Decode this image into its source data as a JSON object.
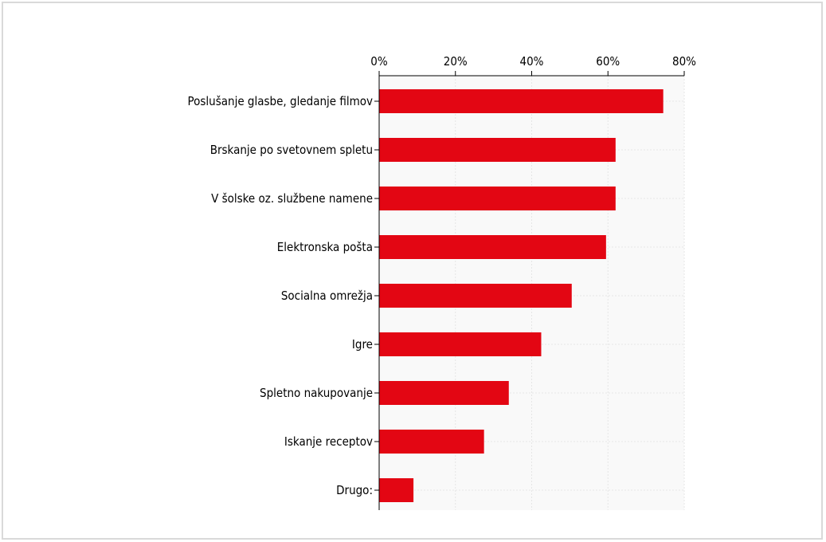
{
  "chart_data": {
    "type": "bar",
    "orientation": "horizontal",
    "title": "",
    "xlabel": "",
    "ylabel": "",
    "xlim": [
      0,
      80
    ],
    "x_ticks": [
      "0%",
      "20%",
      "40%",
      "60%",
      "80%"
    ],
    "x_tick_values": [
      0,
      20,
      40,
      60,
      80
    ],
    "x_axis_position": "top",
    "grid": true,
    "legend": "none",
    "categories": [
      "Poslušanje glasbe, gledanje filmov",
      "Brskanje po svetovnem spletu",
      "V šolske oz. službene namene",
      "Elektronska pošta",
      "Socialna omrežja",
      "Igre",
      "Spletno nakupovanje",
      "Iskanje receptov",
      "Drugo:"
    ],
    "values": [
      74.5,
      62,
      62,
      59.5,
      50.5,
      42.5,
      34,
      27.5,
      9
    ],
    "bar_color": "#e30613",
    "plot_bg": "#f9f9f9",
    "grid_color": "#e6e6e6"
  }
}
